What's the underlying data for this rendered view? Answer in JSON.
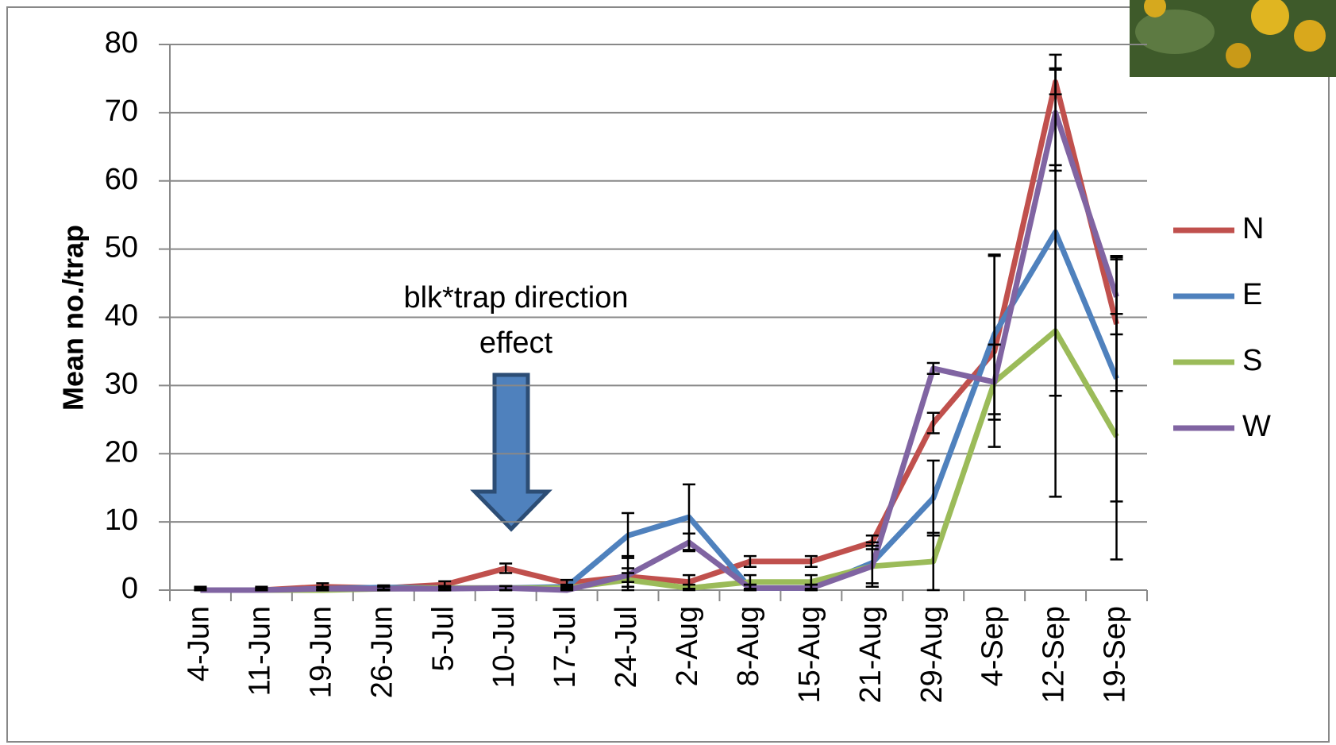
{
  "chart_data": {
    "type": "line",
    "y_label": "Mean no./trap",
    "annotation": [
      "blk*trap direction",
      "effect"
    ],
    "categories": [
      "4-Jun",
      "11-Jun",
      "19-Jun",
      "26-Jun",
      "5-Jul",
      "10-Jul",
      "17-Jul",
      "24-Jul",
      "2-Aug",
      "8-Aug",
      "15-Aug",
      "21-Aug",
      "29-Aug",
      "4-Sep",
      "12-Sep",
      "19-Sep"
    ],
    "ylim": [
      0,
      80
    ],
    "yticks": [
      0,
      10,
      20,
      30,
      40,
      50,
      60,
      70,
      80
    ],
    "grid": true,
    "legend": "right",
    "series": [
      {
        "name": "N",
        "color": "#c0504d",
        "values": [
          0,
          0,
          0.5,
          0.3,
          0.8,
          3.2,
          1,
          2,
          1.2,
          4.2,
          4.2,
          7,
          24.5,
          35,
          74.5,
          39
        ],
        "errors": [
          0.5,
          0.5,
          0.5,
          0.3,
          0.5,
          0.7,
          0.5,
          3,
          1,
          0.8,
          0.8,
          1,
          1.5,
          14,
          1.8,
          9.8
        ]
      },
      {
        "name": "E",
        "color": "#4f81bd",
        "values": [
          0,
          0,
          0.2,
          0.4,
          0.3,
          0.3,
          0.5,
          8,
          10.7,
          0.3,
          0.3,
          4,
          13.5,
          37.5,
          52.5,
          31
        ],
        "errors": [
          0.3,
          0.3,
          0.3,
          0.3,
          0.3,
          0.3,
          0.3,
          3.3,
          4.8,
          0.5,
          0.5,
          3,
          5.5,
          11.7,
          24,
          18
        ]
      },
      {
        "name": "S",
        "color": "#9bbb59",
        "values": [
          0,
          0,
          0,
          0.2,
          0.3,
          0.3,
          0.3,
          1.5,
          0.3,
          1.2,
          1.2,
          3.5,
          4.2,
          30.5,
          38,
          22.5
        ],
        "errors": [
          0.3,
          0.3,
          0.3,
          0.3,
          0.3,
          0.3,
          0.3,
          1,
          0.5,
          1,
          1,
          3,
          4.2,
          5.5,
          24.3,
          18
        ]
      },
      {
        "name": "W",
        "color": "#8064a2",
        "values": [
          0,
          0,
          0.2,
          0.2,
          0.2,
          0.3,
          0,
          2.2,
          7,
          0.3,
          0.3,
          3.5,
          32.5,
          30.5,
          70,
          43
        ],
        "errors": [
          0.3,
          0.3,
          0.3,
          0.3,
          0.3,
          0.3,
          0.3,
          1,
          1.3,
          0.5,
          0.5,
          3,
          0.8,
          5.5,
          8.5,
          5.5
        ]
      }
    ]
  }
}
